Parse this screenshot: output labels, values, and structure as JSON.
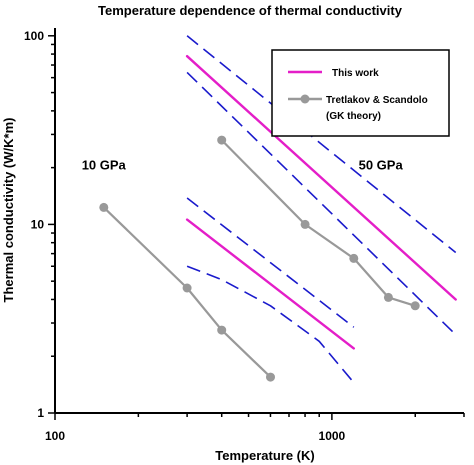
{
  "chart_data": {
    "type": "line",
    "title": "Temperature dependence of thermal conductivity",
    "xlabel": "Temperature (K)",
    "ylabel": "Thermal conductivity (W/K*m)",
    "xscale": "log",
    "yscale": "log",
    "xlim": [
      100,
      3000
    ],
    "ylim": [
      1,
      110
    ],
    "x_ticks": [
      {
        "value": 100,
        "label": "100"
      },
      {
        "value": 1000,
        "label": "1000"
      }
    ],
    "y_ticks": [
      {
        "value": 1,
        "label": "1"
      },
      {
        "value": 10,
        "label": "10"
      },
      {
        "value": 100,
        "label": "100"
      }
    ],
    "grid": false,
    "legend": {
      "position": "top-right",
      "entries": [
        {
          "label": "This work",
          "color": "#e41ec8",
          "marker": "none"
        },
        {
          "label": "Tretlakov & Scandolo",
          "sublabel": "(GK theory)",
          "color": "#999999",
          "marker": "circle"
        }
      ]
    },
    "annotations": [
      {
        "text": "10 GPa",
        "x": 150,
        "y": 19.6
      },
      {
        "text": "50 GPa",
        "x": 1500,
        "y": 19.6
      }
    ],
    "series": [
      {
        "name": "This work",
        "group": "10 GPa",
        "style": "solid",
        "color": "#e41ec8",
        "x": [
          300,
          1200
        ],
        "y": [
          10.6,
          2.2
        ]
      },
      {
        "group": "10 GPa",
        "style": "dashed",
        "color": "#1a1acc",
        "x": [
          300,
          400,
          600,
          900,
          1200
        ],
        "y": [
          6.0,
          5.1,
          3.7,
          2.4,
          1.45
        ]
      },
      {
        "group": "10 GPa",
        "style": "dashed",
        "color": "#1a1acc",
        "x": [
          300,
          1200
        ],
        "y": [
          13.8,
          2.85
        ]
      },
      {
        "name": "This work",
        "group": "50 GPa",
        "style": "solid",
        "color": "#e41ec8",
        "x": [
          300,
          2800
        ],
        "y": [
          78,
          4.0
        ]
      },
      {
        "group": "50 GPa",
        "style": "dashed",
        "color": "#1a1acc",
        "x": [
          300,
          2800
        ],
        "y": [
          100,
          7.1
        ]
      },
      {
        "group": "50 GPa",
        "style": "dashed",
        "color": "#1a1acc",
        "x": [
          300,
          2800
        ],
        "y": [
          64,
          2.6
        ]
      },
      {
        "name": "Tretlakov & Scandolo",
        "group": "10 GPa",
        "style": "solid-marker",
        "color": "#999999",
        "x": [
          150,
          300,
          400,
          600
        ],
        "y": [
          12.3,
          4.6,
          2.75,
          1.55
        ]
      },
      {
        "name": "Tretlakov & Scandolo",
        "group": "50 GPa",
        "style": "solid-marker",
        "color": "#999999",
        "x": [
          400,
          800,
          1200,
          1600,
          2000
        ],
        "y": [
          28,
          10.0,
          6.6,
          4.1,
          3.7
        ]
      }
    ]
  }
}
